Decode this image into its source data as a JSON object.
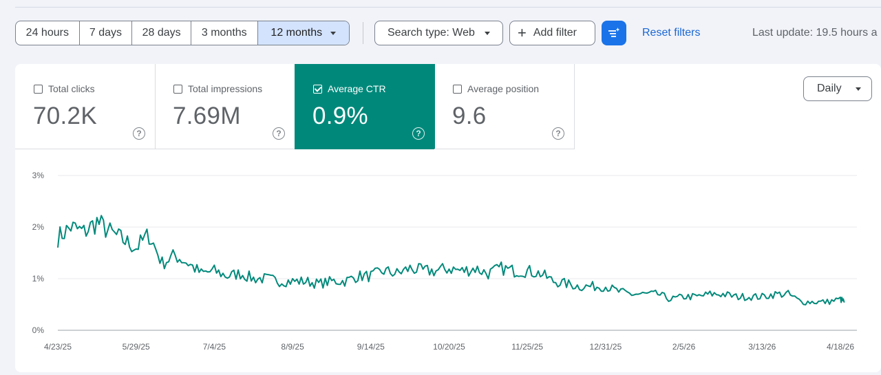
{
  "toolbar": {
    "ranges": [
      "24 hours",
      "7 days",
      "28 days",
      "3 months",
      "12 months"
    ],
    "selected_range": "12 months",
    "search_type": "Search type: Web",
    "add_filter": "Add filter",
    "ai_icon": "filter-sparkle-icon",
    "reset_filters": "Reset filters",
    "last_update": "Last update: 19.5 hours a"
  },
  "metrics": [
    {
      "label": "Total clicks",
      "value": "70.2K",
      "checked": false
    },
    {
      "label": "Total impressions",
      "value": "7.69M",
      "checked": false
    },
    {
      "label": "Average CTR",
      "value": "0.9%",
      "checked": true
    },
    {
      "label": "Average position",
      "value": "9.6",
      "checked": false
    }
  ],
  "granularity": "Daily",
  "colors": {
    "accent": "#00897b",
    "selected_range": "#d3e3fd",
    "link": "#1a66d2",
    "ai_button": "#1a73e8"
  },
  "chart_data": {
    "type": "line",
    "title": "",
    "xlabel": "",
    "ylabel": "",
    "ylim": [
      0,
      3
    ],
    "y_ticks": [
      "0%",
      "1%",
      "2%",
      "3%"
    ],
    "x_ticks": [
      "4/23/25",
      "5/29/25",
      "7/4/25",
      "8/9/25",
      "9/14/25",
      "10/20/25",
      "11/25/25",
      "12/31/25",
      "2/5/26",
      "3/13/26",
      "4/18/26"
    ],
    "grid": true,
    "legend": "none",
    "series": [
      {
        "color": "#00897b",
        "x": [
          "4/23/25",
          "4/29/25",
          "5/5/25",
          "5/11/25",
          "5/17/25",
          "5/23/25",
          "5/29/25",
          "6/4/25",
          "6/10/25",
          "6/16/25",
          "6/22/25",
          "6/28/25",
          "7/4/25",
          "7/10/25",
          "7/16/25",
          "7/22/25",
          "7/28/25",
          "8/3/25",
          "8/9/25",
          "8/15/25",
          "8/21/25",
          "8/27/25",
          "9/2/25",
          "9/8/25",
          "9/14/25",
          "9/20/25",
          "9/26/25",
          "10/2/25",
          "10/8/25",
          "10/14/25",
          "10/20/25",
          "10/26/25",
          "11/1/25",
          "11/7/25",
          "11/13/25",
          "11/19/25",
          "11/25/25",
          "12/1/25",
          "12/7/25",
          "12/13/25",
          "12/19/25",
          "12/25/25",
          "12/31/25",
          "1/6/26",
          "1/12/26",
          "1/18/26",
          "1/24/26",
          "1/30/26",
          "2/5/26",
          "2/11/26",
          "2/17/26",
          "2/23/26",
          "3/1/26",
          "3/7/26",
          "3/13/26",
          "3/19/26",
          "3/25/26",
          "3/31/26",
          "4/6/26",
          "4/12/26",
          "4/18/26",
          "4/20/26"
        ],
        "values": [
          1.8,
          2.0,
          1.9,
          2.1,
          1.9,
          1.75,
          1.6,
          1.85,
          1.3,
          1.45,
          1.3,
          1.1,
          1.15,
          1.05,
          1.1,
          1.0,
          1.0,
          0.95,
          0.95,
          0.95,
          0.9,
          0.95,
          0.95,
          1.05,
          1.05,
          1.15,
          1.1,
          1.2,
          1.15,
          1.15,
          1.2,
          1.15,
          1.2,
          1.1,
          1.2,
          1.15,
          1.15,
          1.1,
          0.95,
          0.9,
          0.85,
          0.85,
          0.85,
          0.75,
          0.7,
          0.7,
          0.7,
          0.6,
          0.65,
          0.65,
          0.7,
          0.7,
          0.65,
          0.65,
          0.65,
          0.7,
          0.7,
          0.55,
          0.55,
          0.55,
          0.6,
          0.55
        ]
      }
    ]
  }
}
